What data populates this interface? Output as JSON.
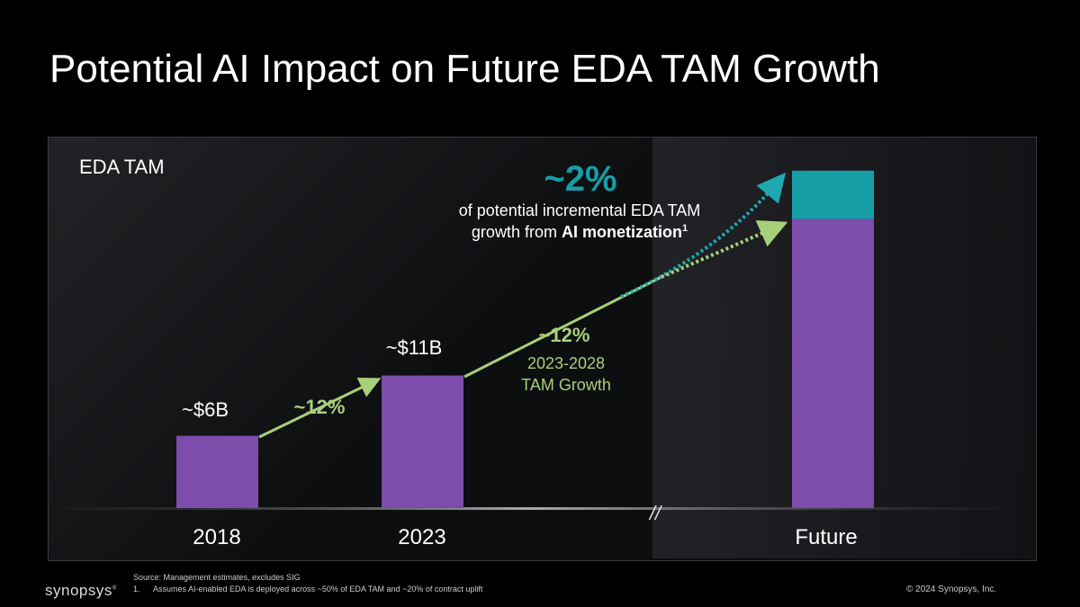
{
  "title": "Potential AI Impact on Future EDA TAM Growth",
  "chart_data": {
    "type": "bar",
    "title": "EDA TAM",
    "categories": [
      "2018",
      "2023",
      "Future"
    ],
    "values": [
      6,
      11,
      24
    ],
    "stacked_increment": [
      0,
      0,
      4
    ],
    "data_labels": [
      "~$6B",
      "~$11B",
      ""
    ],
    "colors": {
      "base": "#7c4dab",
      "ai": "#159ea6",
      "growth": "#a8cf7a",
      "ai_arrow": "#1fa8b0"
    },
    "annotations": {
      "cagr_1": "~12%",
      "cagr_2": "~12%",
      "cagr_2_sub1": "2023-2028",
      "cagr_2_sub2": "TAM Growth",
      "ai_pct": "~2%",
      "ai_text1": "of potential incremental EDA TAM",
      "ai_text2_pre": "growth from ",
      "ai_text2_bold": "AI monetization",
      "ai_text2_sup": "1",
      "axis_break": "//"
    }
  },
  "footer": {
    "source": "Source: Management estimates, excludes SIG",
    "note_num": "1.",
    "note": "Assumes AI-enabled EDA is deployed across ~50% of EDA TAM and ~20% of contract uplift",
    "copyright": "© 2024 Synopsys, Inc.",
    "logo": "SYNOPSYS"
  }
}
